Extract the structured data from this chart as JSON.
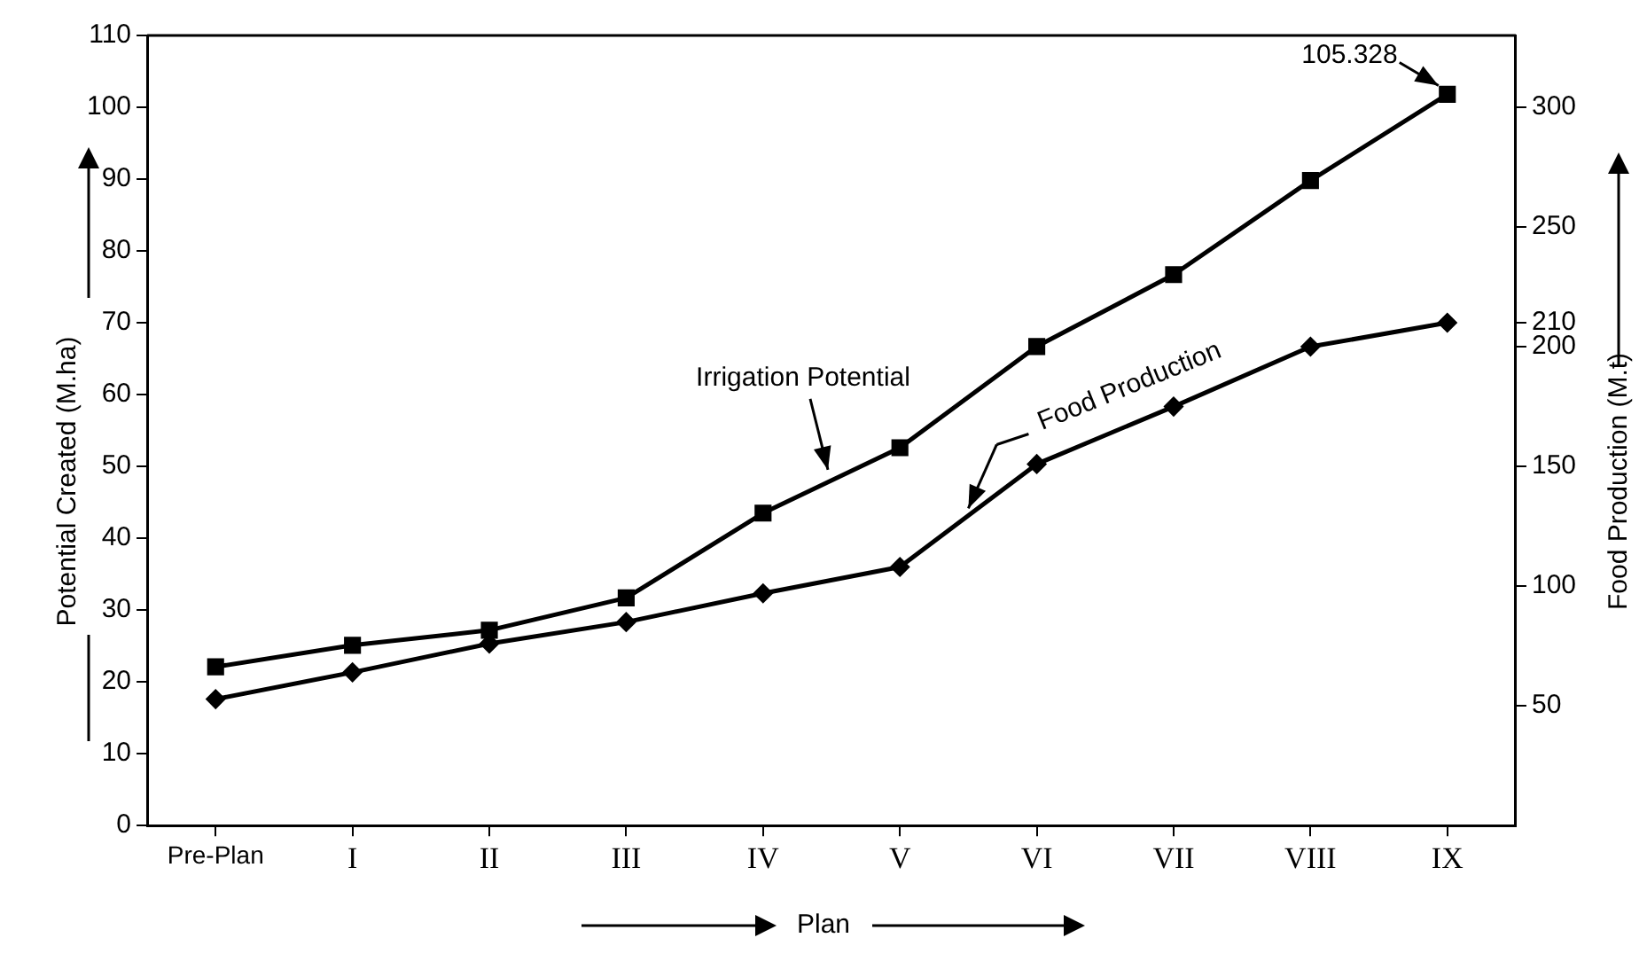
{
  "chart_data": {
    "type": "line",
    "categories": [
      "Pre-Plan",
      "I",
      "II",
      "III",
      "IV",
      "V",
      "VI",
      "VII",
      "VIII",
      "IX"
    ],
    "series": [
      {
        "name": "Irrigation Potential",
        "color": "#000000",
        "marker": "square",
        "values": [
          22.1,
          25.1,
          27.2,
          31.7,
          43.5,
          52.6,
          66.7,
          76.7,
          89.8,
          101.8
        ]
      },
      {
        "name": "Food Production",
        "color": "#000000",
        "marker": "diamond",
        "axis": "y2",
        "values": [
          52.8,
          64,
          76,
          85,
          97,
          108,
          151,
          175,
          200,
          210
        ]
      }
    ],
    "xlabel": "Plan",
    "ylabel": "Potential Created (M.ha)",
    "y2label": "Food Production (M.t)",
    "ylim": [
      0,
      110
    ],
    "yticks": [
      0,
      10,
      20,
      30,
      40,
      50,
      60,
      70,
      80,
      90,
      100,
      110
    ],
    "y2lim": [
      0,
      330
    ],
    "y2ticks": [
      50,
      100,
      150,
      200,
      210,
      250,
      300
    ],
    "annotations": [
      {
        "text": "105.328",
        "x": "IX",
        "y": 101.8
      }
    ],
    "grid": false,
    "legend": false,
    "line_style": "solid"
  }
}
